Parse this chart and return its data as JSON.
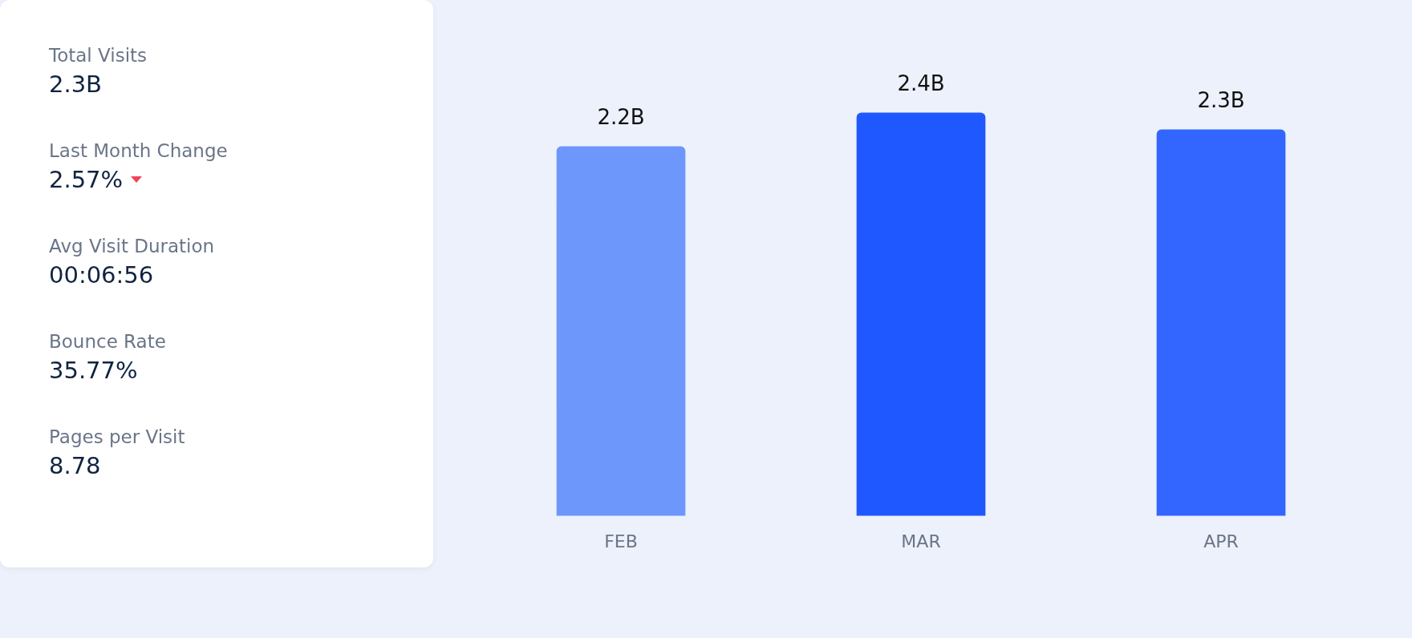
{
  "chart_data": [
    {
      "type": "other",
      "categories": [
        "Total Visits",
        "Last Month Change",
        "Avg Visit Duration",
        "Bounce Rate",
        "Pages per Visit"
      ],
      "value_labels": [
        "2.3B",
        "2.57%",
        "00:06:56",
        "35.77%",
        "8.78"
      ]
    },
    {
      "type": "bar",
      "categories": [
        "FEB",
        "MAR",
        "APR"
      ],
      "values": [
        2.2,
        2.4,
        2.3
      ],
      "colors": [
        "#6e97fb",
        "#1f58ff",
        "#3366ff"
      ],
      "value_labels": [
        "2.2B",
        "2.4B",
        "2.3B"
      ],
      "grid": false,
      "legend": false
    }
  ]
}
